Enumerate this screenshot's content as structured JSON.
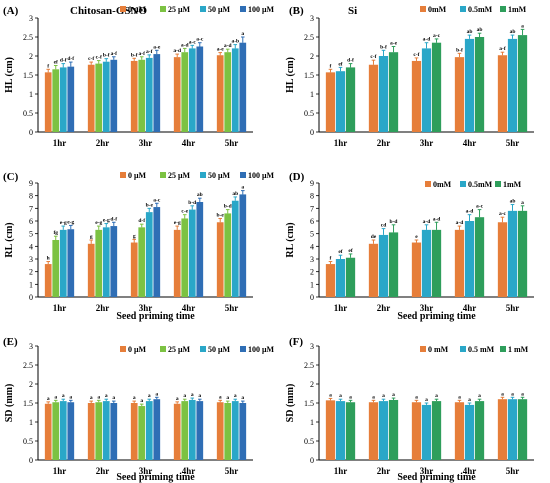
{
  "figure_categories": [
    "1hr",
    "2hr",
    "3hr",
    "4hr",
    "5hr"
  ],
  "colors": {
    "orange": "#E67E3A",
    "lightgreen": "#7CC242",
    "teal": "#2AA7C8",
    "blue": "#2F6EB5",
    "green": "#2E9E5B"
  },
  "chart_data": [
    {
      "panel": "(A)",
      "type": "bar",
      "title": "Chitosan-GSNO",
      "xlabel": "",
      "ylabel": "HL (cm)",
      "ylim": [
        0,
        3
      ],
      "yticks": [
        0,
        0.5,
        1,
        1.5,
        2,
        2.5,
        3
      ],
      "categories": [
        "1hr",
        "2hr",
        "3hr",
        "4hr",
        "5hr"
      ],
      "legend": "top-right",
      "series": [
        {
          "name": "0 μM",
          "color": "#E67E3A",
          "values": [
            1.57,
            1.77,
            1.87,
            1.97,
            2.02
          ],
          "errors": [
            0.08,
            0.07,
            0.07,
            0.08,
            0.07
          ],
          "labels": [
            "f",
            "c-f",
            "b-f",
            "a-d",
            "a-e"
          ]
        },
        {
          "name": "25 μM",
          "color": "#7CC242",
          "values": [
            1.65,
            1.8,
            1.9,
            2.1,
            2.1
          ],
          "errors": [
            0.1,
            0.08,
            0.08,
            0.1,
            0.08
          ],
          "labels": [
            "ef",
            "c-f",
            "a-f",
            "a-d",
            "a-d"
          ]
        },
        {
          "name": "50 μM",
          "color": "#2AA7C8",
          "values": [
            1.7,
            1.85,
            1.95,
            2.2,
            2.2
          ],
          "errors": [
            0.1,
            0.08,
            0.08,
            0.08,
            0.1
          ],
          "labels": [
            "d-f",
            "b-f",
            "a-f",
            "a-c",
            "a-b"
          ]
        },
        {
          "name": "100 μM",
          "color": "#2F6EB5",
          "values": [
            1.72,
            1.9,
            2.05,
            2.25,
            2.35
          ],
          "errors": [
            0.12,
            0.08,
            0.1,
            0.1,
            0.15
          ],
          "labels": [
            "d-f",
            "a-f",
            "a-e",
            "a-c",
            "a"
          ]
        }
      ]
    },
    {
      "panel": "(B)",
      "type": "bar",
      "title": "Si",
      "xlabel": "",
      "ylabel": "HL (cm)",
      "ylim": [
        0,
        3
      ],
      "yticks": [
        0,
        0.5,
        1,
        1.5,
        2,
        2.5,
        3
      ],
      "categories": [
        "1hr",
        "2hr",
        "3hr",
        "4hr",
        "5hr"
      ],
      "legend": "top-right",
      "series": [
        {
          "name": "0mM",
          "color": "#E67E3A",
          "values": [
            1.57,
            1.77,
            1.87,
            1.97,
            2.02
          ],
          "errors": [
            0.08,
            0.12,
            0.08,
            0.1,
            0.08
          ],
          "labels": [
            "f",
            "c-f",
            "c-f",
            "b-f",
            "a-f"
          ]
        },
        {
          "name": "0.5mM",
          "color": "#2AA7C8",
          "values": [
            1.6,
            2.0,
            2.2,
            2.45,
            2.45
          ],
          "errors": [
            0.1,
            0.15,
            0.15,
            0.1,
            0.1
          ],
          "labels": [
            "ef",
            "b-f",
            "a-d",
            "ab",
            "ab"
          ]
        },
        {
          "name": "1mM",
          "color": "#2E9E5B",
          "values": [
            1.7,
            2.1,
            2.35,
            2.5,
            2.55
          ],
          "errors": [
            0.1,
            0.15,
            0.1,
            0.1,
            0.15
          ],
          "labels": [
            "d-f",
            "a-e",
            "a-c",
            "ab",
            "a"
          ]
        }
      ]
    },
    {
      "panel": "(C)",
      "type": "bar",
      "title": "",
      "xlabel": "Seed priming time",
      "ylabel": "RL (cm)",
      "ylim": [
        0,
        9
      ],
      "yticks": [
        0,
        1,
        2,
        3,
        4,
        5,
        6,
        7,
        8,
        9
      ],
      "categories": [
        "1hr",
        "2hr",
        "3hr",
        "4hr",
        "5hr"
      ],
      "legend": "top-right",
      "series": [
        {
          "name": "0 μM",
          "color": "#E67E3A",
          "values": [
            2.6,
            4.2,
            4.3,
            5.3,
            5.9
          ],
          "errors": [
            0.2,
            0.3,
            0.25,
            0.3,
            0.3
          ],
          "labels": [
            "h",
            "g",
            "g",
            "e-g",
            "b-e"
          ]
        },
        {
          "name": "25 μM",
          "color": "#7CC242",
          "values": [
            4.5,
            5.3,
            5.5,
            6.2,
            6.6
          ],
          "errors": [
            0.3,
            0.3,
            0.25,
            0.3,
            0.3
          ],
          "labels": [
            "fg",
            "e-g",
            "d-f",
            "c-e",
            "b-d"
          ]
        },
        {
          "name": "50 μM",
          "color": "#2AA7C8",
          "values": [
            5.3,
            5.5,
            6.7,
            6.9,
            7.6
          ],
          "errors": [
            0.3,
            0.3,
            0.3,
            0.3,
            0.3
          ],
          "labels": [
            "e-g",
            "e-g",
            "b-e",
            "b-d",
            "ab"
          ]
        },
        {
          "name": "100 μM",
          "color": "#2F6EB5",
          "values": [
            5.35,
            5.6,
            7.1,
            7.5,
            8.1
          ],
          "errors": [
            0.3,
            0.3,
            0.3,
            0.3,
            0.3
          ],
          "labels": [
            "e-g",
            "d-f",
            "a-c",
            "ab",
            "a"
          ]
        }
      ]
    },
    {
      "panel": "(D)",
      "type": "bar",
      "title": "",
      "xlabel": "Seed priming time",
      "ylabel": "RL (cm)",
      "ylim": [
        0,
        9
      ],
      "yticks": [
        0,
        1,
        2,
        3,
        4,
        5,
        6,
        7,
        8,
        9
      ],
      "categories": [
        "1hr",
        "2hr",
        "3hr",
        "4hr",
        "5hr"
      ],
      "legend": "top-right",
      "series": [
        {
          "name": "0mM",
          "color": "#E67E3A",
          "values": [
            2.6,
            4.2,
            4.3,
            5.3,
            5.9
          ],
          "errors": [
            0.2,
            0.3,
            0.2,
            0.3,
            0.4
          ],
          "labels": [
            "f",
            "de",
            "e",
            "a-d",
            "a-c"
          ]
        },
        {
          "name": "0.5mM",
          "color": "#2AA7C8",
          "values": [
            3.0,
            4.9,
            5.3,
            6.0,
            6.8
          ],
          "errors": [
            0.3,
            0.5,
            0.4,
            0.5,
            0.5
          ],
          "labels": [
            "ef",
            "cd",
            "a-d",
            "a-d",
            "ab"
          ]
        },
        {
          "name": "1mM",
          "color": "#2E9E5B",
          "values": [
            3.1,
            5.1,
            5.3,
            6.3,
            6.8
          ],
          "errors": [
            0.3,
            0.6,
            0.6,
            0.6,
            0.4
          ],
          "labels": [
            "ef",
            "b-d",
            "a-d",
            "a-c",
            "a"
          ]
        }
      ]
    },
    {
      "panel": "(E)",
      "type": "bar",
      "title": "",
      "xlabel": "Seed priming time",
      "ylabel": "SD (mm)",
      "ylim": [
        0,
        3
      ],
      "yticks": [
        0,
        0.5,
        1,
        1.5,
        2,
        2.5,
        3
      ],
      "categories": [
        "1hr",
        "2hr",
        "3hr",
        "4hr",
        "5hr"
      ],
      "legend": "top-right",
      "series": [
        {
          "name": "0 μM",
          "color": "#E67E3A",
          "values": [
            1.48,
            1.5,
            1.5,
            1.48,
            1.52
          ],
          "errors": [
            0.05,
            0.05,
            0.05,
            0.05,
            0.05
          ],
          "labels": [
            "a",
            "a",
            "a",
            "a",
            "a"
          ]
        },
        {
          "name": "25 μM",
          "color": "#7CC242",
          "values": [
            1.52,
            1.52,
            1.42,
            1.55,
            1.5
          ],
          "errors": [
            0.05,
            0.05,
            0.05,
            0.05,
            0.05
          ],
          "labels": [
            "a",
            "a",
            "a",
            "a",
            "a"
          ]
        },
        {
          "name": "50 μM",
          "color": "#2AA7C8",
          "values": [
            1.55,
            1.55,
            1.55,
            1.58,
            1.55
          ],
          "errors": [
            0.05,
            0.05,
            0.05,
            0.05,
            0.05
          ],
          "labels": [
            "a",
            "a",
            "a",
            "a",
            "a"
          ]
        },
        {
          "name": "100 μM",
          "color": "#2F6EB5",
          "values": [
            1.52,
            1.5,
            1.6,
            1.55,
            1.5
          ],
          "errors": [
            0.05,
            0.05,
            0.05,
            0.05,
            0.05
          ],
          "labels": [
            "a",
            "a",
            "a",
            "a",
            "a"
          ]
        }
      ]
    },
    {
      "panel": "(F)",
      "type": "bar",
      "title": "",
      "xlabel": "Seed priming time",
      "ylabel": "SD (mm)",
      "ylim": [
        0,
        3
      ],
      "yticks": [
        0,
        0.5,
        1,
        1.5,
        2,
        2.5,
        3
      ],
      "categories": [
        "1hr",
        "2hr",
        "3hr",
        "4hr",
        "5hr"
      ],
      "legend": "top-right",
      "series": [
        {
          "name": "0 mM",
          "color": "#E67E3A",
          "values": [
            1.57,
            1.52,
            1.52,
            1.52,
            1.6
          ],
          "errors": [
            0.05,
            0.05,
            0.05,
            0.05,
            0.05
          ],
          "labels": [
            "a",
            "a",
            "a",
            "a",
            "a"
          ]
        },
        {
          "name": "0.5 mM",
          "color": "#2AA7C8",
          "values": [
            1.55,
            1.55,
            1.45,
            1.45,
            1.6
          ],
          "errors": [
            0.05,
            0.05,
            0.05,
            0.05,
            0.05
          ],
          "labels": [
            "a",
            "a",
            "a",
            "a",
            "a"
          ]
        },
        {
          "name": "1 mM",
          "color": "#2E9E5B",
          "values": [
            1.52,
            1.58,
            1.55,
            1.55,
            1.6
          ],
          "errors": [
            0.05,
            0.05,
            0.05,
            0.05,
            0.05
          ],
          "labels": [
            "a",
            "a",
            "a",
            "a",
            "a"
          ]
        }
      ]
    }
  ]
}
